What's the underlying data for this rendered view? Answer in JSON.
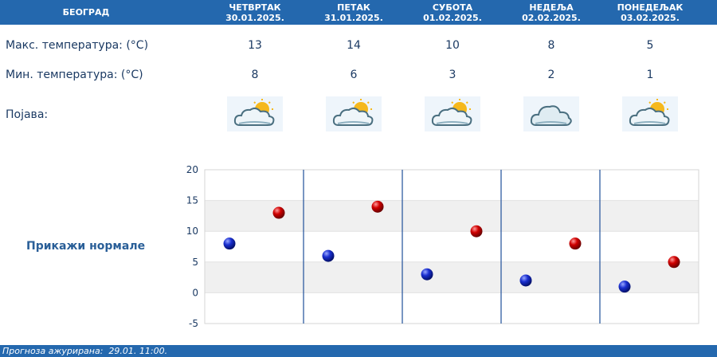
{
  "header": {
    "city": "БЕОГРАД",
    "days": [
      {
        "name": "ЧЕТВРТАК",
        "date": "30.01.2025."
      },
      {
        "name": "ПЕТАК",
        "date": "31.01.2025."
      },
      {
        "name": "СУБОТА",
        "date": "01.02.2025."
      },
      {
        "name": "НЕДЕЉА",
        "date": "02.02.2025."
      },
      {
        "name": "ПОНЕДЕЉАК",
        "date": "03.02.2025."
      }
    ]
  },
  "rows": {
    "max_label": "Макс. температура: (°C)",
    "min_label": "Мин. температура: (°C)",
    "phen_label": "Појава:",
    "max": [
      "13",
      "14",
      "10",
      "8",
      "5"
    ],
    "min": [
      "8",
      "6",
      "3",
      "2",
      "1"
    ]
  },
  "icons": [
    "partly-cloudy-icon",
    "partly-cloudy-icon",
    "partly-cloudy-icon",
    "cloudy-icon",
    "partly-cloudy-icon"
  ],
  "show_normals": "Прикажи нормале",
  "footer": {
    "text": "Прогноза ажурирана:  29.01. 11:00."
  },
  "colors": {
    "header": "#2468ae",
    "min_marker": "#0a1fb0",
    "max_marker": "#c80000",
    "band": "#f0f0f0",
    "divider": "#1f4f9a"
  },
  "chart_data": {
    "type": "scatter",
    "categories": [
      "ЧЕТВРТАК",
      "ПЕТАК",
      "СУБОТА",
      "НЕДЕЉА",
      "ПОНЕДЕЉАК"
    ],
    "series": [
      {
        "values": [
          8,
          6,
          3,
          2,
          1
        ]
      },
      {
        "values": [
          13,
          14,
          10,
          8,
          5
        ]
      }
    ],
    "ylim": [
      -5,
      20
    ],
    "yticks": [
      "20",
      "15",
      "10",
      "5",
      "0",
      "-5"
    ],
    "grid": true
  }
}
